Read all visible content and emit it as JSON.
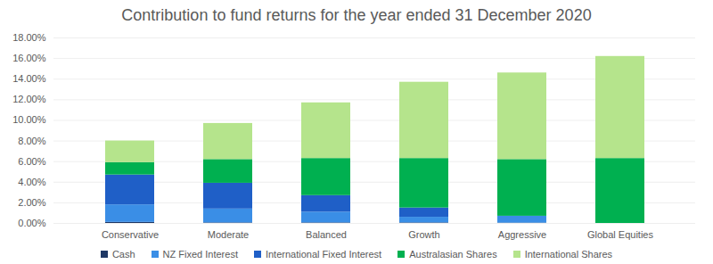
{
  "chart_data": {
    "type": "bar",
    "title": "Contribution to fund returns for the year ended 31 December 2020",
    "stacked": true,
    "grid": true,
    "legend": "bottom",
    "categories": [
      "Conservative",
      "Moderate",
      "Balanced",
      "Growth",
      "Aggressive",
      "Global Equities"
    ],
    "ylim": [
      0,
      18
    ],
    "yticks": [
      {
        "value": 0,
        "label": "0.00%"
      },
      {
        "value": 2,
        "label": "2.00%"
      },
      {
        "value": 4,
        "label": "4.00%"
      },
      {
        "value": 6,
        "label": "6.00%"
      },
      {
        "value": 8,
        "label": "8.00%"
      },
      {
        "value": 10,
        "label": "10.00%"
      },
      {
        "value": 12,
        "label": "12.00%"
      },
      {
        "value": 14,
        "label": "14.00%"
      },
      {
        "value": 16,
        "label": "16.00%"
      },
      {
        "value": 18,
        "label": "18.00%"
      }
    ],
    "series": [
      {
        "name": "Cash",
        "color": "#1f3864",
        "values": [
          0.1,
          0.05,
          0.05,
          0.05,
          0.03,
          0
        ]
      },
      {
        "name": "NZ Fixed Interest",
        "color": "#3a8ee6",
        "values": [
          1.7,
          1.35,
          1.05,
          0.55,
          0.67,
          0
        ]
      },
      {
        "name": "International Fixed Interest",
        "color": "#1f5fc7",
        "values": [
          2.9,
          2.5,
          1.6,
          0.9,
          0,
          0
        ]
      },
      {
        "name": "Australasian Shares",
        "color": "#00b050",
        "values": [
          1.2,
          2.3,
          3.6,
          4.8,
          5.5,
          6.3
        ]
      },
      {
        "name": "International Shares",
        "color": "#b5e48c",
        "values": [
          2.1,
          3.5,
          5.4,
          7.4,
          8.4,
          9.9
        ]
      }
    ]
  }
}
